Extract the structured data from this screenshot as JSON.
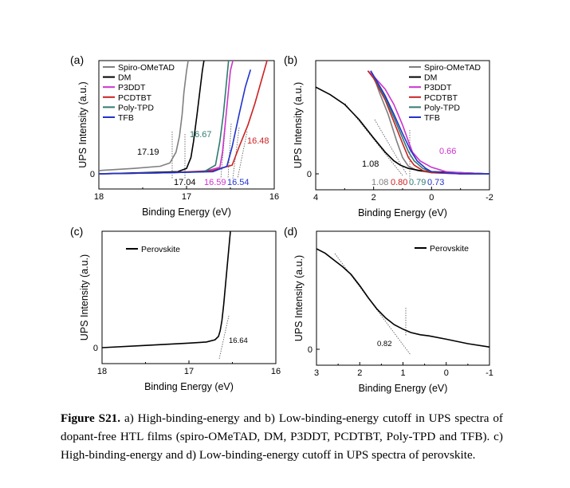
{
  "caption": {
    "label": "Figure S21.",
    "text": " a) High-binding-energy and b) Low-binding-energy cutoff in UPS spectra of dopant-free HTL films (spiro-OMeTAD, DM, P3DDT, PCDTBT, Poly-TPD and TFB). c) High-binding-energy and d) Low-binding-energy cutoff in UPS spectra of perovskite."
  },
  "colors": {
    "Spiro-OMeTAD": "#7f7f7f",
    "DM": "#000000",
    "P3DDT": "#cc33cc",
    "PCDTBT": "#cc2222",
    "Poly-TPD": "#2e7b70",
    "TFB": "#2233cc",
    "Perovskite": "#000000"
  },
  "chart_data": [
    {
      "panel": "(a)",
      "type": "line",
      "xlabel": "Binding Energy (eV)",
      "ylabel": "UPS Intensity (a.u.)",
      "xlim": [
        18,
        16
      ],
      "xticks": [
        "18",
        "17",
        "16"
      ],
      "yticks": [
        "0"
      ],
      "legend": "top-left",
      "series": [
        {
          "name": "Spiro-OMeTAD",
          "x": [
            18.0,
            17.6,
            17.3,
            17.19,
            17.12,
            17.08,
            17.05,
            17.03,
            17.0,
            16.98
          ],
          "y": [
            0.03,
            0.05,
            0.07,
            0.1,
            0.2,
            0.35,
            0.55,
            0.75,
            0.95,
            1.05
          ]
        },
        {
          "name": "DM",
          "x": [
            18.0,
            17.5,
            17.1,
            17.0,
            16.95,
            16.92,
            16.88,
            16.85,
            16.82,
            16.8
          ],
          "y": [
            0.0,
            0.01,
            0.02,
            0.05,
            0.15,
            0.3,
            0.55,
            0.75,
            0.95,
            1.05
          ]
        },
        {
          "name": "P3DDT",
          "x": [
            18.0,
            17.2,
            16.8,
            16.62,
            16.59,
            16.56,
            16.53,
            16.5,
            16.47
          ],
          "y": [
            0.0,
            0.01,
            0.02,
            0.06,
            0.2,
            0.45,
            0.7,
            0.95,
            1.05
          ]
        },
        {
          "name": "PCDTBT",
          "x": [
            18.0,
            17.2,
            16.7,
            16.48,
            16.4,
            16.3,
            16.22,
            16.15,
            16.08
          ],
          "y": [
            0.0,
            0.01,
            0.03,
            0.08,
            0.25,
            0.45,
            0.65,
            0.85,
            1.05
          ]
        },
        {
          "name": "Poly-TPD",
          "x": [
            18.0,
            17.2,
            16.8,
            16.67,
            16.62,
            16.58,
            16.55,
            16.52
          ],
          "y": [
            0.0,
            0.01,
            0.02,
            0.08,
            0.3,
            0.55,
            0.8,
            1.05
          ]
        },
        {
          "name": "TFB",
          "x": [
            18.0,
            17.2,
            16.7,
            16.54,
            16.48,
            16.4,
            16.33,
            16.27
          ],
          "y": [
            0.0,
            0.01,
            0.02,
            0.07,
            0.25,
            0.55,
            0.8,
            0.96
          ]
        }
      ],
      "annotations": [
        "17.19",
        "17.04",
        "16.67",
        "16.59",
        "16.54",
        "16.48"
      ]
    },
    {
      "panel": "(b)",
      "type": "line",
      "xlabel": "Binding Energy (eV)",
      "ylabel": "UPS Intensity (a.u.)",
      "xlim": [
        4,
        -2
      ],
      "xticks": [
        "4",
        "2",
        "0",
        "-2"
      ],
      "yticks": [
        "0"
      ],
      "legend": "top-right",
      "series": [
        {
          "name": "Spiro-OMeTAD",
          "x": [
            2.0,
            1.8,
            1.5,
            1.2,
            1.0,
            0.8,
            0.5,
            0.0,
            -1.0,
            -2.0
          ],
          "y": [
            0.9,
            0.75,
            0.55,
            0.3,
            0.15,
            0.07,
            0.03,
            0.01,
            0.0,
            0.0
          ]
        },
        {
          "name": "DM",
          "x": [
            4.0,
            3.5,
            3.0,
            2.5,
            2.0,
            1.6,
            1.3,
            1.08,
            0.8,
            0.4,
            0.0,
            -1.0,
            -2.0
          ],
          "y": [
            0.8,
            0.73,
            0.64,
            0.5,
            0.33,
            0.2,
            0.12,
            0.08,
            0.05,
            0.03,
            0.02,
            0.01,
            0.0
          ]
        },
        {
          "name": "P3DDT",
          "x": [
            2.2,
            2.0,
            1.6,
            1.3,
            1.0,
            0.8,
            0.66,
            0.4,
            0.0,
            -0.5,
            -1.0,
            -2.0
          ],
          "y": [
            0.95,
            0.9,
            0.78,
            0.64,
            0.45,
            0.3,
            0.2,
            0.12,
            0.06,
            0.02,
            0.01,
            0.0
          ]
        },
        {
          "name": "PCDTBT",
          "x": [
            2.2,
            2.0,
            1.6,
            1.3,
            1.0,
            0.8,
            0.6,
            0.3,
            0.0,
            -1.0,
            -2.0
          ],
          "y": [
            0.95,
            0.88,
            0.68,
            0.48,
            0.28,
            0.15,
            0.08,
            0.03,
            0.01,
            0.0,
            0.0
          ]
        },
        {
          "name": "Poly-TPD",
          "x": [
            2.1,
            1.9,
            1.6,
            1.3,
            1.0,
            0.79,
            0.6,
            0.3,
            0.0,
            -1.0,
            -2.0
          ],
          "y": [
            0.95,
            0.85,
            0.7,
            0.52,
            0.33,
            0.2,
            0.12,
            0.05,
            0.02,
            0.0,
            0.0
          ]
        },
        {
          "name": "TFB",
          "x": [
            2.1,
            1.9,
            1.6,
            1.3,
            1.0,
            0.73,
            0.5,
            0.2,
            0.0,
            -1.0,
            -2.0
          ],
          "y": [
            0.95,
            0.86,
            0.72,
            0.55,
            0.37,
            0.22,
            0.12,
            0.05,
            0.02,
            0.0,
            0.0
          ]
        }
      ],
      "annotations": [
        "1.08",
        "0.66",
        "1.08",
        "0.80",
        "0.79",
        "0.73"
      ]
    },
    {
      "panel": "(c)",
      "type": "line",
      "xlabel": "Binding Energy (eV)",
      "ylabel": "UPS Intensity (a.u.)",
      "xlim": [
        18,
        16
      ],
      "xticks": [
        "18",
        "17",
        "16"
      ],
      "yticks": [
        "0"
      ],
      "legend": "top-left",
      "series": [
        {
          "name": "Perovskite",
          "x": [
            18.0,
            17.5,
            17.0,
            16.8,
            16.7,
            16.66,
            16.64,
            16.62,
            16.6,
            16.58,
            16.56,
            16.54,
            16.52
          ],
          "y": [
            0.0,
            0.02,
            0.04,
            0.05,
            0.07,
            0.1,
            0.15,
            0.24,
            0.38,
            0.55,
            0.72,
            0.88,
            1.05
          ]
        }
      ],
      "annotations": [
        "16.64"
      ]
    },
    {
      "panel": "(d)",
      "type": "line",
      "xlabel": "Binding Energy (eV)",
      "ylabel": "UPS Intensity (a.u.)",
      "xlim": [
        3,
        -1
      ],
      "xticks": [
        "3",
        "2",
        "1",
        "0",
        "-1"
      ],
      "yticks": [
        "0"
      ],
      "legend": "top-right",
      "series": [
        {
          "name": "Perovskite",
          "x": [
            3.0,
            2.8,
            2.6,
            2.4,
            2.2,
            2.0,
            1.8,
            1.6,
            1.4,
            1.2,
            1.0,
            0.82,
            0.6,
            0.4,
            0.0,
            -0.5,
            -1.0
          ],
          "y": [
            0.9,
            0.86,
            0.8,
            0.74,
            0.67,
            0.57,
            0.46,
            0.36,
            0.28,
            0.22,
            0.18,
            0.15,
            0.13,
            0.12,
            0.09,
            0.05,
            0.02
          ]
        }
      ],
      "annotations": [
        "0.82"
      ]
    }
  ]
}
